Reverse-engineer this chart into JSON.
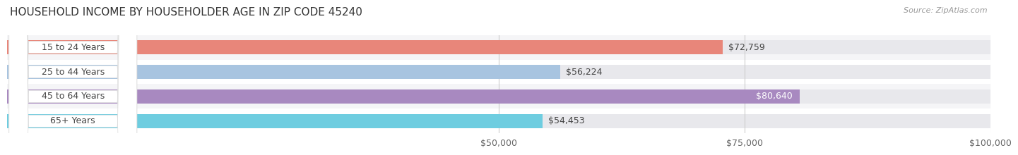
{
  "title": "HOUSEHOLD INCOME BY HOUSEHOLDER AGE IN ZIP CODE 45240",
  "source": "Source: ZipAtlas.com",
  "categories": [
    "15 to 24 Years",
    "25 to 44 Years",
    "45 to 64 Years",
    "65+ Years"
  ],
  "values": [
    72759,
    56224,
    80640,
    54453
  ],
  "labels": [
    "$72,759",
    "$56,224",
    "$80,640",
    "$54,453"
  ],
  "bar_colors": [
    "#E8867A",
    "#A8C4E0",
    "#A889C0",
    "#6ECDE0"
  ],
  "label_inside": [
    false,
    false,
    true,
    false
  ],
  "row_bg_colors": [
    "#F5F5F7",
    "#FFFFFF",
    "#F5F5F7",
    "#FFFFFF"
  ],
  "xlim": [
    0,
    100000
  ],
  "xticks": [
    50000,
    75000,
    100000
  ],
  "xtick_labels": [
    "$50,000",
    "$75,000",
    "$100,000"
  ],
  "title_fontsize": 11,
  "source_fontsize": 8,
  "label_fontsize": 9,
  "cat_fontsize": 9,
  "tick_fontsize": 9,
  "bar_height": 0.58,
  "fig_width": 14.06,
  "fig_height": 2.33,
  "bar_bg_color": "#E8E8EC"
}
